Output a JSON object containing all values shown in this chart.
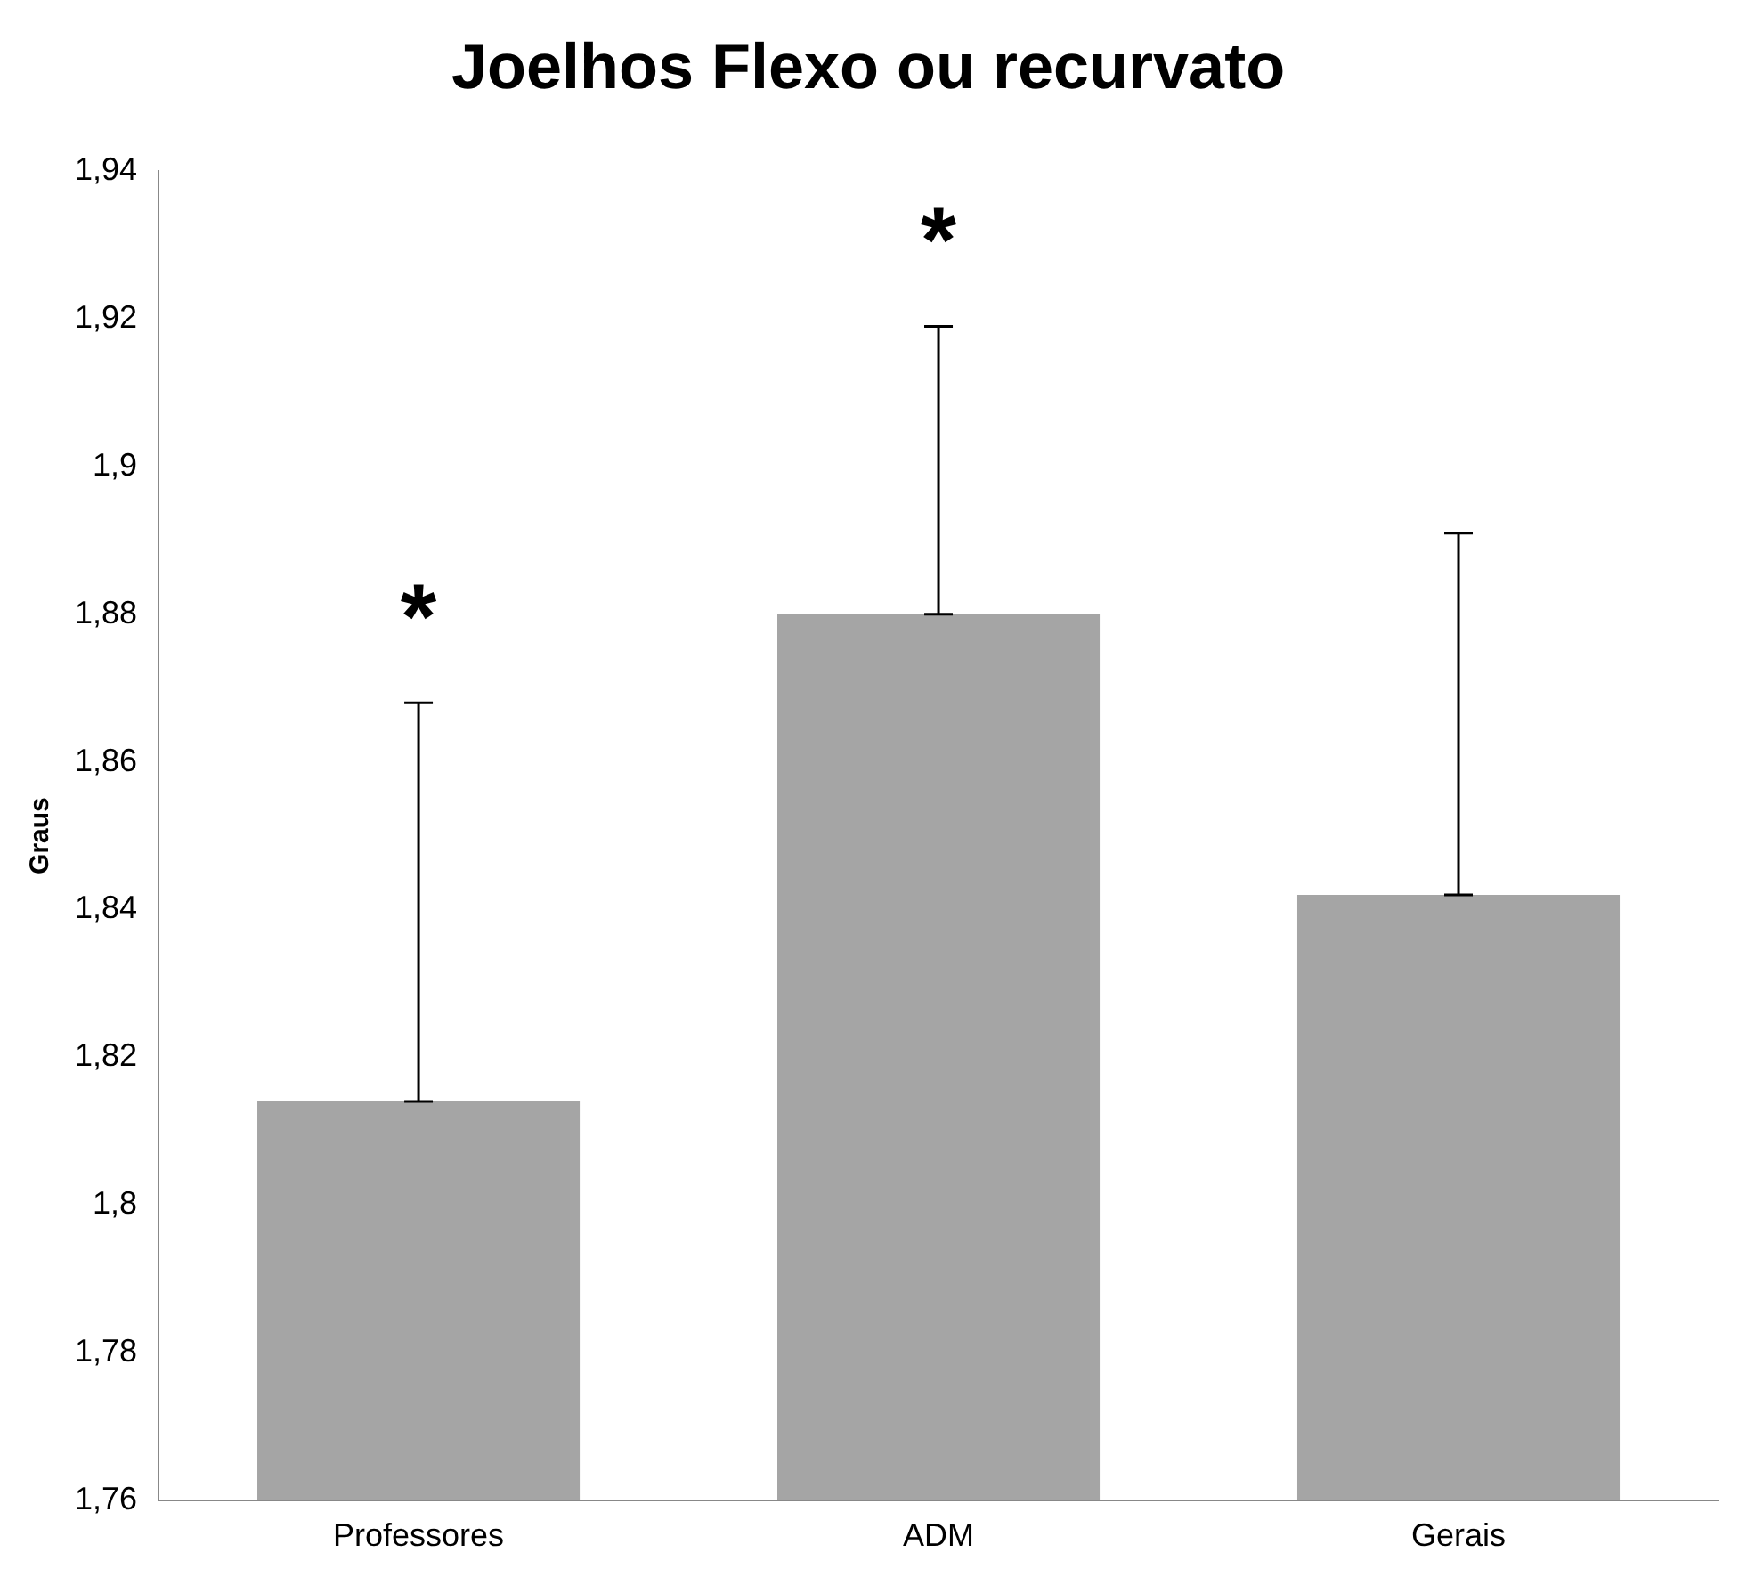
{
  "chart_data": {
    "type": "bar",
    "title": "Joelhos Flexo ou recurvato",
    "ylabel": "Graus",
    "categories": [
      "Professores",
      "ADM",
      "Gerais"
    ],
    "values": [
      1.814,
      1.88,
      1.842
    ],
    "errors": [
      [
        1.814,
        1.868
      ],
      [
        1.88,
        1.919
      ],
      [
        1.842,
        1.891
      ]
    ],
    "color": "#a5a5a5",
    "ylim": [
      1.76,
      1.94
    ],
    "yticks": [
      {
        "value": 1.76,
        "label": "1,76"
      },
      {
        "value": 1.78,
        "label": "1,78"
      },
      {
        "value": 1.8,
        "label": "1,8"
      },
      {
        "value": 1.82,
        "label": "1,82"
      },
      {
        "value": 1.84,
        "label": "1,84"
      },
      {
        "value": 1.86,
        "label": "1,86"
      },
      {
        "value": 1.88,
        "label": "1,88"
      },
      {
        "value": 1.9,
        "label": "1,9"
      },
      {
        "value": 1.92,
        "label": "1,92"
      },
      {
        "value": 1.94,
        "label": "1,94"
      }
    ],
    "annotations": [
      "*",
      "*"
    ],
    "grid": false,
    "legend": false
  }
}
